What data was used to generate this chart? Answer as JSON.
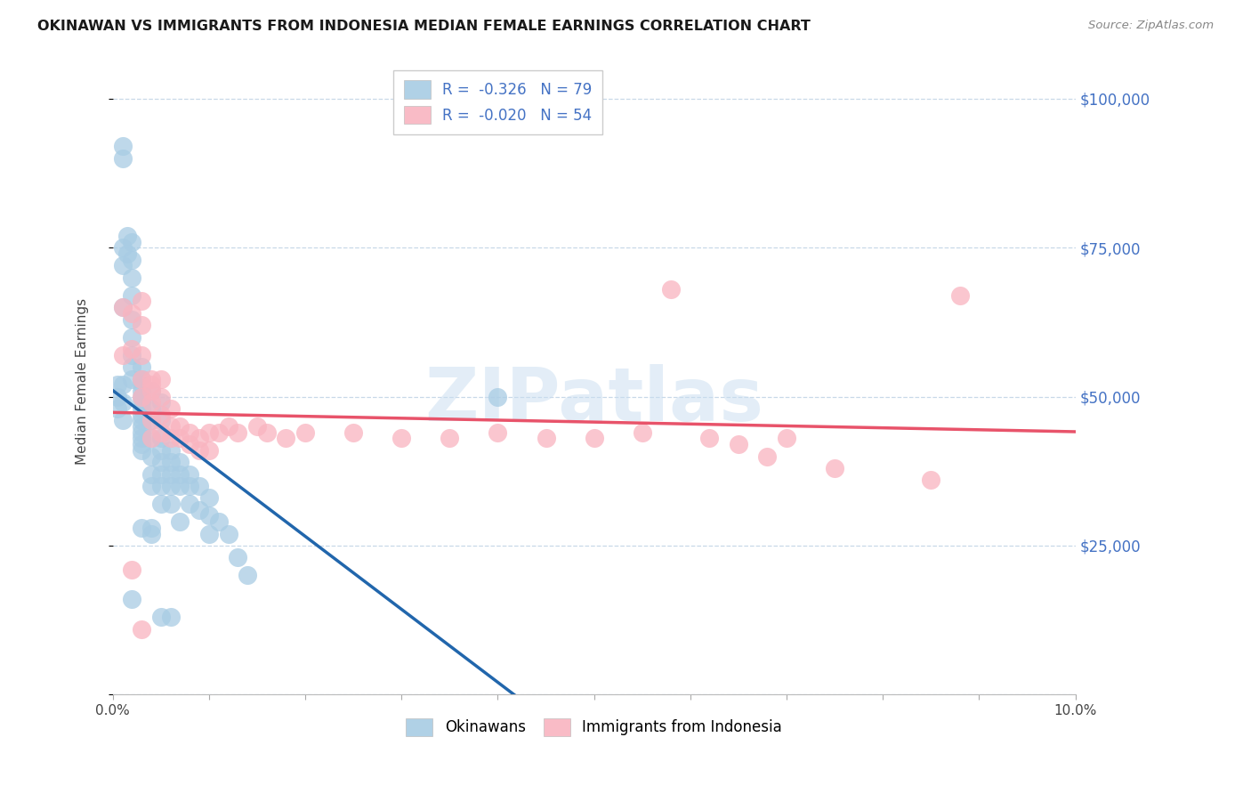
{
  "title": "OKINAWAN VS IMMIGRANTS FROM INDONESIA MEDIAN FEMALE EARNINGS CORRELATION CHART",
  "source": "Source: ZipAtlas.com",
  "ylabel": "Median Female Earnings",
  "ytick_values": [
    0,
    25000,
    50000,
    75000,
    100000
  ],
  "ytick_labels_right": [
    "",
    "$25,000",
    "$50,000",
    "$75,000",
    "$100,000"
  ],
  "xlim": [
    0.0,
    0.1
  ],
  "ylim": [
    0,
    105000
  ],
  "legend_r_ok": "-0.326",
  "legend_n_ok": "79",
  "legend_r_id": "-0.020",
  "legend_n_id": "54",
  "legend_label_ok": "Okinawans",
  "legend_label_id": "Immigrants from Indonesia",
  "okinawan_color": "#a8cce4",
  "indonesia_color": "#f9b4c0",
  "okinawan_trend_color": "#2166ac",
  "indonesia_trend_color": "#e8536a",
  "background_color": "#ffffff",
  "grid_color": "#c8d8e8",
  "watermark": "ZIPatlas",
  "legend_text_color": "#4472c4",
  "right_axis_color": "#4472c4",
  "title_color": "#1a1a1a",
  "source_color": "#888888",
  "okinawan_x": [
    0.001,
    0.001,
    0.001,
    0.001,
    0.0015,
    0.0015,
    0.002,
    0.002,
    0.002,
    0.002,
    0.002,
    0.002,
    0.002,
    0.002,
    0.002,
    0.003,
    0.003,
    0.003,
    0.003,
    0.003,
    0.003,
    0.003,
    0.003,
    0.003,
    0.003,
    0.003,
    0.003,
    0.003,
    0.003,
    0.004,
    0.004,
    0.004,
    0.004,
    0.004,
    0.004,
    0.004,
    0.005,
    0.005,
    0.005,
    0.005,
    0.005,
    0.005,
    0.005,
    0.005,
    0.006,
    0.006,
    0.006,
    0.006,
    0.006,
    0.007,
    0.007,
    0.007,
    0.007,
    0.008,
    0.008,
    0.008,
    0.009,
    0.009,
    0.01,
    0.01,
    0.01,
    0.011,
    0.012,
    0.013,
    0.014,
    0.0005,
    0.0005,
    0.0005,
    0.001,
    0.001,
    0.001,
    0.002,
    0.003,
    0.004,
    0.004,
    0.005,
    0.006,
    0.04,
    0.001
  ],
  "okinawan_y": [
    90000,
    75000,
    72000,
    65000,
    77000,
    74000,
    76000,
    73000,
    70000,
    67000,
    63000,
    60000,
    57000,
    55000,
    53000,
    55000,
    53000,
    52000,
    51000,
    50000,
    49000,
    48000,
    47000,
    46000,
    45000,
    44000,
    43000,
    42000,
    41000,
    51000,
    48000,
    46000,
    43000,
    40000,
    37000,
    35000,
    49000,
    46000,
    43000,
    41000,
    39000,
    37000,
    35000,
    32000,
    41000,
    39000,
    37000,
    35000,
    32000,
    39000,
    37000,
    35000,
    29000,
    37000,
    35000,
    32000,
    35000,
    31000,
    33000,
    30000,
    27000,
    29000,
    27000,
    23000,
    20000,
    52000,
    50000,
    48000,
    52000,
    49000,
    46000,
    16000,
    28000,
    28000,
    27000,
    13000,
    13000,
    50000,
    92000
  ],
  "indonesia_x": [
    0.001,
    0.001,
    0.002,
    0.002,
    0.003,
    0.003,
    0.003,
    0.003,
    0.003,
    0.004,
    0.004,
    0.004,
    0.004,
    0.004,
    0.005,
    0.005,
    0.005,
    0.005,
    0.006,
    0.006,
    0.006,
    0.007,
    0.007,
    0.008,
    0.008,
    0.009,
    0.009,
    0.01,
    0.01,
    0.011,
    0.012,
    0.013,
    0.015,
    0.016,
    0.018,
    0.02,
    0.025,
    0.03,
    0.035,
    0.04,
    0.045,
    0.05,
    0.055,
    0.058,
    0.062,
    0.065,
    0.068,
    0.07,
    0.075,
    0.085,
    0.088,
    0.002,
    0.003,
    0.004
  ],
  "indonesia_y": [
    65000,
    57000,
    64000,
    58000,
    66000,
    62000,
    57000,
    53000,
    50000,
    53000,
    51000,
    49000,
    46000,
    43000,
    53000,
    50000,
    47000,
    44000,
    48000,
    45000,
    43000,
    45000,
    43000,
    44000,
    42000,
    43000,
    41000,
    44000,
    41000,
    44000,
    45000,
    44000,
    45000,
    44000,
    43000,
    44000,
    44000,
    43000,
    43000,
    44000,
    43000,
    43000,
    44000,
    68000,
    43000,
    42000,
    40000,
    43000,
    38000,
    36000,
    67000,
    21000,
    11000,
    52000
  ]
}
